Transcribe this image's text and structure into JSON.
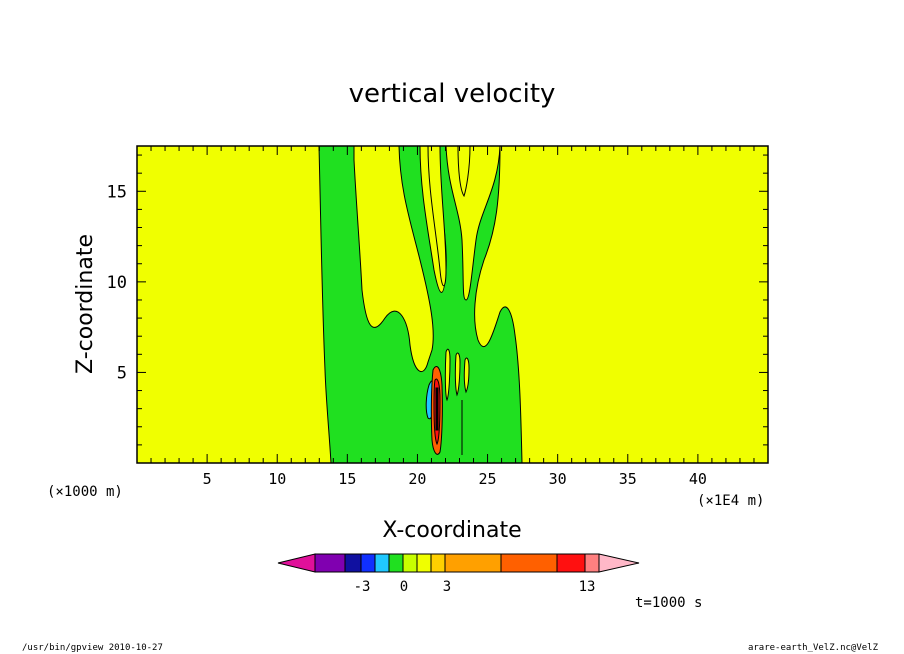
{
  "chart_data": {
    "type": "heatmap",
    "title": "vertical velocity",
    "xlabel": "X-coordinate",
    "ylabel": "Z-coordinate",
    "x_unit_left": "(×1000 m)",
    "x_unit_right": "(×1E4 m)",
    "xlim": [
      0,
      45
    ],
    "ylim": [
      0,
      17.5
    ],
    "xticks": [
      "5",
      "10",
      "15",
      "20",
      "25",
      "30",
      "35",
      "40"
    ],
    "yticks": [
      "5",
      "10",
      "15"
    ],
    "background_level_color": "#f0ff00",
    "colorbar": {
      "colors": [
        "#e0109a",
        "#8000b0",
        "#1010a0",
        "#1030ff",
        "#20c8ff",
        "#20e020",
        "#c8ff00",
        "#f0ff00",
        "#ffd000",
        "#ffa000",
        "#ff6000",
        "#ff1010",
        "#ff8080",
        "#ffb8c8"
      ],
      "tick_labels": [
        "-3",
        "0",
        "3",
        "13"
      ]
    },
    "time_label": "t=1000 s"
  },
  "footer": {
    "left": "/usr/bin/gpview   2010-10-27",
    "right": "arare-earth_VelZ.nc@VelZ"
  }
}
